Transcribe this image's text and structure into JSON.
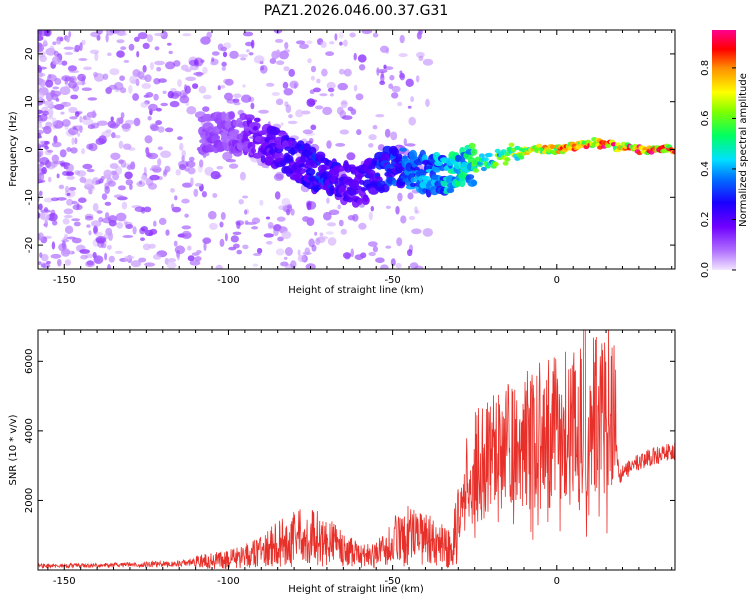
{
  "title": "PAZ1.2026.046.00.37.G31",
  "chart_data": [
    {
      "type": "heatmap",
      "name": "spectrogram",
      "xlabel": "Height of straight line (km)",
      "ylabel": "Frequency (Hz)",
      "xlim": [
        -158,
        36
      ],
      "ylim": [
        -25,
        25
      ],
      "xticks": [
        "-150",
        "-100",
        "-50",
        "0"
      ],
      "xtick_values": [
        -150,
        -100,
        -50,
        0
      ],
      "yticks": [
        "20",
        "10",
        "0",
        "-10",
        "-20"
      ],
      "ytick_values": [
        20,
        10,
        0,
        -10,
        -20
      ],
      "colorbar": {
        "label": "Normalized spectral amplitude",
        "range": [
          0,
          0.95
        ],
        "ticks": [
          "0.0",
          "0.2",
          "0.4",
          "0.6",
          "0.8"
        ],
        "tick_values": [
          0.0,
          0.2,
          0.4,
          0.6,
          0.8
        ],
        "colormap": "rainbow (purple-blue-cyan-green-yellow-orange-red-magenta)"
      },
      "ridge": {
        "x": [
          -100,
          -95,
          -90,
          -85,
          -80,
          -75,
          -70,
          -65,
          -60,
          -55,
          -50,
          -45,
          -40,
          -35,
          -30,
          -25,
          -20,
          -15,
          -10,
          -5,
          0,
          5,
          10,
          15,
          20,
          25,
          30,
          36
        ],
        "y": [
          3.5,
          3,
          2,
          0,
          -2,
          -4,
          -5.5,
          -7,
          -8,
          -5,
          -3.5,
          -4,
          -5,
          -5.5,
          -4,
          -3,
          -2,
          -1,
          0,
          0,
          0,
          0.5,
          1.5,
          1,
          0.5,
          0,
          0,
          0
        ],
        "amplitude": [
          0.12,
          0.15,
          0.2,
          0.22,
          0.25,
          0.28,
          0.3,
          0.22,
          0.2,
          0.3,
          0.32,
          0.36,
          0.4,
          0.45,
          0.5,
          0.55,
          0.6,
          0.65,
          0.7,
          0.75,
          0.8,
          0.82,
          0.85,
          0.88,
          0.9,
          0.92,
          0.92,
          0.9
        ]
      }
    },
    {
      "type": "line",
      "name": "snr",
      "xlabel": "Height of straight line (km)",
      "ylabel": "SNR (10 * v/v)",
      "xlim": [
        -158,
        36
      ],
      "ylim": [
        0,
        6900
      ],
      "xticks": [
        "-150",
        "-100",
        "-50",
        "0"
      ],
      "xtick_values": [
        -150,
        -100,
        -50,
        0
      ],
      "yticks": [
        "2000",
        "4000",
        "6000"
      ],
      "ytick_values": [
        2000,
        4000,
        6000
      ],
      "color": "#e8302a",
      "envelope": {
        "x": [
          -158,
          -140,
          -120,
          -110,
          -100,
          -95,
          -90,
          -85,
          -80,
          -75,
          -70,
          -65,
          -60,
          -55,
          -50,
          -45,
          -40,
          -35,
          -32,
          -30,
          -27,
          -25,
          -20,
          -15,
          -10,
          -5,
          0,
          3,
          5,
          7,
          8,
          9,
          10,
          12,
          15,
          17,
          19,
          20,
          25,
          30,
          36
        ],
        "y": [
          120,
          130,
          170,
          220,
          300,
          400,
          520,
          750,
          900,
          1000,
          800,
          600,
          400,
          450,
          800,
          1000,
          900,
          700,
          600,
          1500,
          2700,
          3000,
          3200,
          3500,
          3700,
          3900,
          4000,
          4100,
          4200,
          4300,
          4200,
          1300,
          4400,
          4600,
          4700,
          4700,
          2600,
          2800,
          3100,
          3300,
          3400
        ]
      }
    }
  ]
}
